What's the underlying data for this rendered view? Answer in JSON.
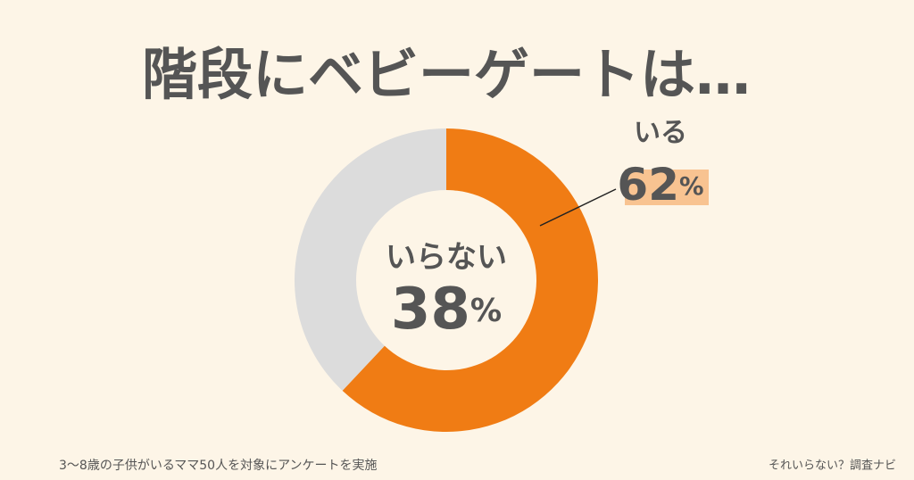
{
  "chart_data": {
    "type": "pie",
    "title": "階段にベビーゲートは…",
    "categories": [
      "いる",
      "いらない"
    ],
    "values": [
      62,
      38
    ],
    "value_labels": [
      "62%",
      "38%"
    ],
    "colors": [
      "#f07c14",
      "#dcdcdc"
    ],
    "note": "3〜8歳の子供がいるママ50人を対象にアンケートを実施",
    "source": "それいらない？調査ナビ"
  }
}
